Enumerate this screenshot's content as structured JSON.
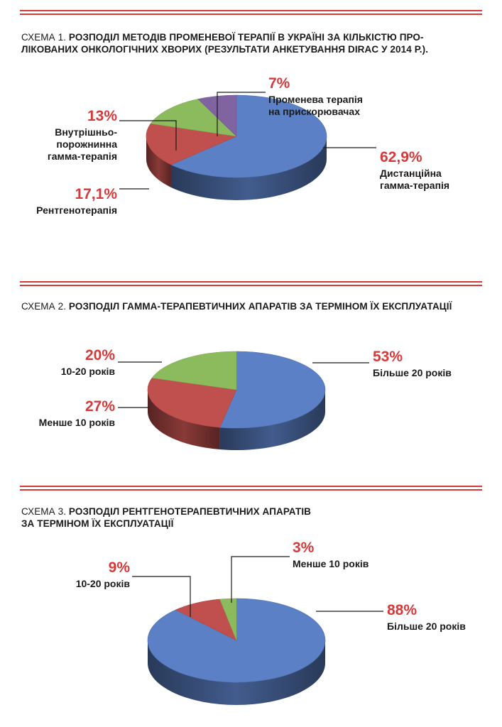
{
  "colors": {
    "rule": "#d6393a",
    "percent": "#d6393a",
    "blue": "#5b80c5",
    "red": "#c0504d",
    "green": "#8cbb5e",
    "purple": "#8064a2"
  },
  "charts": [
    {
      "prefix": "СХЕМА 1.",
      "title_lines": [
        "РОЗПОДІЛ МЕТОДІВ ПРОМЕНЕВОЇ ТЕРАПІЇ В УКРАЇНІ ЗА КІЛЬКІСТЮ ПРО-",
        "ЛІКОВАНИХ ОНКОЛОГІЧНИХ ХВОРИХ (РЕЗУЛЬТАТИ АНКЕТУВАННЯ DIRAC У 2014 Р.)."
      ]
    },
    {
      "prefix": "СХЕМА 2.",
      "title_lines": [
        "РОЗПОДІЛ ГАММА-ТЕРАПЕВТИЧНИХ АПАРАТІВ ЗА ТЕРМІНОМ ЇХ ЕКСПЛУАТАЦІЇ"
      ]
    },
    {
      "prefix": "СХЕМА 3.",
      "title_lines": [
        "РОЗПОДІЛ РЕНТГЕНОТЕРАПЕВТИЧНИХ АПАРАТІВ",
        "ЗА ТЕРМІНОМ ЇХ ЕКСПЛУАТАЦІЇ"
      ]
    }
  ],
  "chart_data": [
    {
      "type": "pie",
      "title": "СХЕМА 1. РОЗПОДІЛ МЕТОДІВ ПРОМЕНЕВОЇ ТЕРАПІЇ В УКРАЇНІ ЗА КІЛЬКІСТЮ ПРОЛІКОВАНИХ ОНКОЛОГІЧНИХ ХВОРИХ (РЕЗУЛЬТАТИ АНКЕТУВАННЯ DIRAC У 2014 Р.).",
      "slices": [
        {
          "value": 62.9,
          "percent_label": "62,9%",
          "label_lines": [
            "Дистанційна",
            "гамма-терапія"
          ],
          "color": "#5b80c5"
        },
        {
          "value": 17.1,
          "percent_label": "17,1%",
          "label_lines": [
            "Рентгенотерапія"
          ],
          "color": "#c0504d"
        },
        {
          "value": 13,
          "percent_label": "13%",
          "label_lines": [
            "Внутрішньо-",
            "порожнинна",
            "гамма-терапія"
          ],
          "color": "#8cbb5e"
        },
        {
          "value": 7,
          "percent_label": "7%",
          "label_lines": [
            "Променева терапія",
            "на прискорювачах"
          ],
          "color": "#8064a2"
        }
      ]
    },
    {
      "type": "pie",
      "title": "СХЕМА 2. РОЗПОДІЛ ГАММА-ТЕРАПЕВТИЧНИХ АПАРАТІВ ЗА ТЕРМІНОМ ЇХ ЕКСПЛУАТАЦІЇ",
      "slices": [
        {
          "value": 53,
          "percent_label": "53%",
          "label_lines": [
            "Більше 20 років"
          ],
          "color": "#5b80c5"
        },
        {
          "value": 27,
          "percent_label": "27%",
          "label_lines": [
            "Менше 10 років"
          ],
          "color": "#c0504d"
        },
        {
          "value": 20,
          "percent_label": "20%",
          "label_lines": [
            "10-20 років"
          ],
          "color": "#8cbb5e"
        }
      ]
    },
    {
      "type": "pie",
      "title": "СХЕМА 3. РОЗПОДІЛ РЕНТГЕНОТЕРАПЕВТИЧНИХ АПАРАТІВ ЗА ТЕРМІНОМ ЇХ ЕКСПЛУАТАЦІЇ",
      "slices": [
        {
          "value": 88,
          "percent_label": "88%",
          "label_lines": [
            "Більше 20 років"
          ],
          "color": "#5b80c5"
        },
        {
          "value": 9,
          "percent_label": "9%",
          "label_lines": [
            "10-20 років"
          ],
          "color": "#c0504d"
        },
        {
          "value": 3,
          "percent_label": "3%",
          "label_lines": [
            "Менше 10 років"
          ],
          "color": "#8cbb5e"
        }
      ]
    }
  ]
}
